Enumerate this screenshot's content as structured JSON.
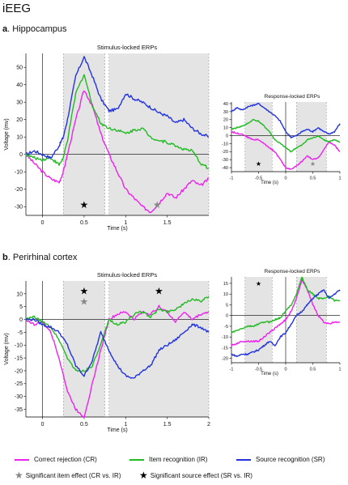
{
  "figure_title": "iEEG",
  "panels": [
    {
      "letter": "a",
      "region": "Hippocampus"
    },
    {
      "letter": "b",
      "region": "Perirhinal cortex"
    }
  ],
  "colors": {
    "cr": "#ee22ee",
    "ir": "#22bb22",
    "sr": "#2233dd",
    "shade": "#e4e4e4",
    "star_item": "#888888",
    "star_source": "#000000"
  },
  "legend": {
    "series": [
      {
        "key": "cr",
        "label": "Correct rejection (CR)"
      },
      {
        "key": "ir",
        "label": "Item recognition (IR)"
      },
      {
        "key": "sr",
        "label": "Source recognition (SR)"
      }
    ],
    "stars": [
      {
        "key": "star_item",
        "label": "Significant item effect (CR vs. IR)"
      },
      {
        "key": "star_source",
        "label": "Significant source effect (SR vs. IR)"
      }
    ]
  },
  "chart_data": [
    {
      "id": "a_stim",
      "type": "line",
      "title": "Stimulus-locked ERPs",
      "xlabel": "Time (s)",
      "ylabel": "Voltage (mv)",
      "xlim": [
        -0.2,
        2.0
      ],
      "ylim": [
        -35,
        58
      ],
      "xticks": [
        0,
        0.5,
        1,
        1.5
      ],
      "xtick_labels": [
        "0",
        "0.5",
        "1",
        "1.5"
      ],
      "yticks": [
        -30,
        -20,
        -10,
        0,
        10,
        20,
        30,
        40,
        50
      ],
      "shaded": [
        [
          0.25,
          0.75
        ],
        [
          0.8,
          2.0
        ]
      ],
      "stars": [
        {
          "x": 0.5,
          "y": -29,
          "kind": "star_source"
        },
        {
          "x": 1.38,
          "y": -29,
          "kind": "star_item"
        }
      ],
      "x": [
        -0.2,
        -0.1,
        0.0,
        0.1,
        0.2,
        0.25,
        0.3,
        0.4,
        0.5,
        0.6,
        0.7,
        0.8,
        0.9,
        1.0,
        1.1,
        1.2,
        1.3,
        1.4,
        1.5,
        1.6,
        1.7,
        1.8,
        1.9,
        2.0
      ],
      "series": [
        {
          "key": "cr",
          "values": [
            0,
            -5,
            -10,
            -14,
            -16,
            -10,
            0,
            20,
            37,
            28,
            12,
            0,
            -10,
            -20,
            -25,
            -30,
            -33,
            -28,
            -22,
            -25,
            -20,
            -15,
            -18,
            -14
          ]
        },
        {
          "key": "ir",
          "values": [
            0,
            -2,
            -3,
            -2,
            -6,
            -2,
            8,
            35,
            46,
            28,
            18,
            15,
            14,
            12,
            14,
            15,
            10,
            8,
            7,
            5,
            3,
            2,
            -5,
            -8
          ]
        },
        {
          "key": "sr",
          "values": [
            0,
            2,
            0,
            -2,
            5,
            10,
            20,
            45,
            56,
            45,
            32,
            25,
            26,
            35,
            32,
            30,
            27,
            24,
            22,
            18,
            20,
            15,
            12,
            10
          ]
        }
      ]
    },
    {
      "id": "a_resp",
      "type": "line",
      "title": "Response-locked ERPs",
      "xlabel": "Time (s)",
      "ylabel": "",
      "xlim": [
        -1,
        1
      ],
      "ylim": [
        -45,
        42
      ],
      "xticks": [
        -1,
        -0.5,
        0,
        0.5,
        1
      ],
      "xtick_labels": [
        "-1",
        "-0.5",
        "0",
        "0.5",
        "1"
      ],
      "yticks": [
        -40,
        -30,
        -20,
        -10,
        0,
        10,
        20,
        30,
        40
      ],
      "shaded": [
        [
          -0.75,
          -0.25
        ],
        [
          0.2,
          0.75
        ]
      ],
      "stars": [
        {
          "x": -0.5,
          "y": -35,
          "kind": "star_source"
        },
        {
          "x": 0.5,
          "y": -35,
          "kind": "star_item"
        }
      ],
      "x": [
        -1.0,
        -0.9,
        -0.8,
        -0.7,
        -0.6,
        -0.5,
        -0.4,
        -0.3,
        -0.2,
        -0.1,
        0.0,
        0.1,
        0.2,
        0.3,
        0.4,
        0.5,
        0.6,
        0.7,
        0.8,
        0.9,
        1.0
      ],
      "series": [
        {
          "key": "cr",
          "values": [
            5,
            3,
            2,
            -2,
            -5,
            -5,
            -10,
            -15,
            -20,
            -30,
            -40,
            -42,
            -38,
            -32,
            -25,
            -30,
            -28,
            -18,
            -8,
            -12,
            -20
          ]
        },
        {
          "key": "ir",
          "values": [
            8,
            10,
            12,
            15,
            20,
            18,
            12,
            5,
            -5,
            -10,
            -15,
            -20,
            -15,
            -12,
            -5,
            -3,
            0,
            -5,
            -8,
            -5,
            -8
          ]
        },
        {
          "key": "sr",
          "values": [
            30,
            35,
            32,
            36,
            38,
            40,
            35,
            30,
            25,
            18,
            5,
            -2,
            0,
            5,
            8,
            5,
            10,
            5,
            2,
            5,
            15
          ]
        }
      ]
    },
    {
      "id": "b_stim",
      "type": "line",
      "title": "Stimulus-locked ERPs",
      "xlabel": "Time (s)",
      "ylabel": "Voltage (mv)",
      "xlim": [
        -0.2,
        2.0
      ],
      "ylim": [
        -38,
        15
      ],
      "xticks": [
        0,
        0.5,
        1,
        1.5,
        2
      ],
      "xtick_labels": [
        "0",
        "0.5",
        "1",
        "1.5",
        "2"
      ],
      "yticks": [
        -35,
        -30,
        -25,
        -20,
        -15,
        -10,
        -5,
        0,
        5,
        10
      ],
      "shaded": [
        [
          0.25,
          0.75
        ],
        [
          0.8,
          2.0
        ]
      ],
      "stars": [
        {
          "x": 0.5,
          "y": 11,
          "kind": "star_source"
        },
        {
          "x": 0.5,
          "y": 7,
          "kind": "star_item"
        },
        {
          "x": 1.4,
          "y": 11,
          "kind": "star_source"
        }
      ],
      "x": [
        -0.2,
        -0.1,
        0.0,
        0.1,
        0.2,
        0.3,
        0.4,
        0.5,
        0.6,
        0.7,
        0.8,
        0.9,
        1.0,
        1.1,
        1.2,
        1.3,
        1.4,
        1.5,
        1.6,
        1.7,
        1.8,
        1.9,
        2.0
      ],
      "series": [
        {
          "key": "cr",
          "values": [
            0,
            -2,
            -1,
            -5,
            -15,
            -28,
            -35,
            -38,
            -25,
            -12,
            0,
            2,
            3,
            0,
            3,
            2,
            5,
            3,
            -1,
            3,
            0,
            2,
            3
          ]
        },
        {
          "key": "ir",
          "values": [
            0,
            1,
            -1,
            -3,
            -8,
            -15,
            -20,
            -20,
            -18,
            -10,
            0,
            -2,
            -1,
            2,
            3,
            1,
            4,
            3,
            4,
            6,
            8,
            7,
            9
          ]
        },
        {
          "key": "sr",
          "values": [
            0,
            0,
            -2,
            -3,
            -5,
            -10,
            -18,
            -22,
            -16,
            -5,
            -12,
            -18,
            -22,
            -23,
            -20,
            -18,
            -12,
            -10,
            -8,
            -5,
            -2,
            -3,
            -5
          ]
        }
      ]
    },
    {
      "id": "b_resp",
      "type": "line",
      "title": "Response-locked ERPs",
      "xlabel": "Time (s)",
      "ylabel": "",
      "xlim": [
        -1,
        1
      ],
      "ylim": [
        -22,
        18
      ],
      "xticks": [
        -1,
        -0.5,
        0,
        0.5,
        1
      ],
      "xtick_labels": [
        "-1",
        "-0.5",
        "0",
        "0.5",
        "1"
      ],
      "yticks": [
        -20,
        -15,
        -10,
        -5,
        0,
        5,
        10,
        15
      ],
      "shaded": [
        [
          -0.75,
          -0.25
        ],
        [
          0.2,
          0.75
        ]
      ],
      "stars": [
        {
          "x": -0.5,
          "y": 15,
          "kind": "star_source"
        }
      ],
      "x": [
        -1.0,
        -0.9,
        -0.8,
        -0.7,
        -0.6,
        -0.5,
        -0.4,
        -0.3,
        -0.2,
        -0.1,
        0.0,
        0.1,
        0.2,
        0.3,
        0.4,
        0.5,
        0.6,
        0.7,
        0.8,
        0.9,
        1.0
      ],
      "series": [
        {
          "key": "cr",
          "values": [
            -14,
            -13,
            -12,
            -12,
            -12,
            -12,
            -10,
            -8,
            -6,
            -4,
            -2,
            2,
            8,
            17,
            12,
            5,
            0,
            -3,
            -4,
            -3,
            -3
          ]
        },
        {
          "key": "ir",
          "values": [
            -8,
            -7,
            -6,
            -5,
            -5,
            -4,
            -3,
            -3,
            -2,
            -1,
            2,
            5,
            10,
            18,
            12,
            10,
            8,
            8,
            9,
            7,
            7
          ]
        },
        {
          "key": "sr",
          "values": [
            -18,
            -19,
            -18,
            -18,
            -17,
            -16,
            -14,
            -12,
            -14,
            -10,
            -8,
            -4,
            0,
            2,
            5,
            8,
            10,
            12,
            8,
            10,
            12
          ]
        }
      ]
    }
  ]
}
